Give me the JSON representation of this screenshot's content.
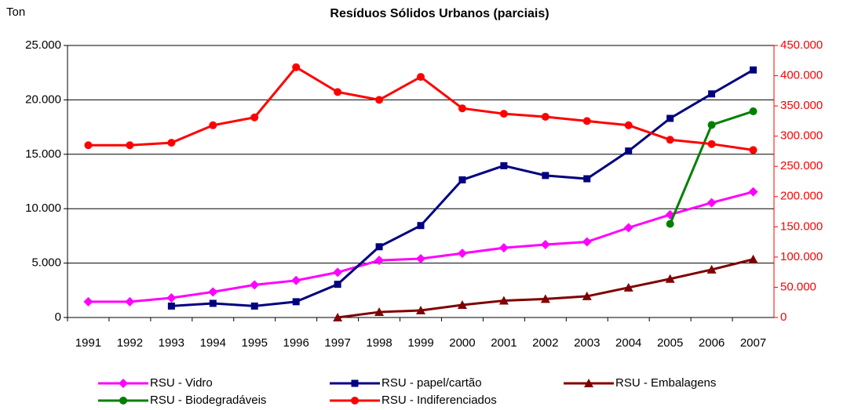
{
  "chart_data": {
    "type": "line",
    "title": "Resíduos Sólidos Urbanos (parciais)",
    "y_axis_label": "Ton",
    "categories": [
      "1991",
      "1992",
      "1993",
      "1994",
      "1995",
      "1996",
      "1997",
      "1998",
      "1999",
      "2000",
      "2001",
      "2002",
      "2003",
      "2004",
      "2005",
      "2006",
      "2007"
    ],
    "series": [
      {
        "name": "RSU - Vidro",
        "color": "#ff00ff",
        "marker": "diamond",
        "values": [
          1450,
          1450,
          1800,
          2350,
          3000,
          3400,
          4150,
          5250,
          5400,
          5900,
          6400,
          6700,
          6950,
          8250,
          9450,
          10550,
          11550
        ]
      },
      {
        "name": "RSU - papel/cartão",
        "color": "#000080",
        "marker": "square",
        "values": [
          null,
          null,
          1050,
          1300,
          1050,
          1450,
          3050,
          6500,
          8450,
          12650,
          13950,
          13050,
          12750,
          15300,
          18300,
          20550,
          22750
        ]
      },
      {
        "name": "RSU - Embalagens",
        "color": "#800000",
        "marker": "triangle",
        "values": [
          null,
          null,
          null,
          null,
          null,
          null,
          0,
          500,
          650,
          1150,
          1550,
          1700,
          1950,
          2750,
          3550,
          4400,
          5350
        ]
      },
      {
        "name": "RSU - Biodegradáveis",
        "color": "#008000",
        "marker": "circle",
        "values": [
          null,
          null,
          null,
          null,
          null,
          null,
          null,
          null,
          null,
          null,
          null,
          null,
          null,
          null,
          8600,
          17700,
          18950
        ]
      },
      {
        "name": "RSU - Indiferenciados",
        "color": "#ff0000",
        "marker": "circle",
        "axis": "y2",
        "values": [
          285000,
          285000,
          289000,
          318000,
          331000,
          414000,
          373000,
          360000,
          398000,
          346000,
          337000,
          332000,
          325000,
          318000,
          294000,
          287000,
          277000
        ]
      }
    ],
    "ylim": [
      0,
      25000
    ],
    "yticks": [
      0,
      {
        "value": 5000,
        "label": "5.000"
      },
      {
        "value": 10000,
        "label": "10.000"
      },
      {
        "value": 15000,
        "label": "15.000"
      },
      {
        "value": 20000,
        "label": "20.000"
      },
      {
        "value": 25000,
        "label": "25.000"
      }
    ],
    "y2lim": [
      0,
      450000
    ],
    "y2ticks": [
      0,
      {
        "value": 50000,
        "label": "50.000"
      },
      {
        "value": 100000,
        "label": "100.000"
      },
      {
        "value": 150000,
        "label": "150.000"
      },
      {
        "value": 200000,
        "label": "200.000"
      },
      {
        "value": 250000,
        "label": "250.000"
      },
      {
        "value": 300000,
        "label": "300.000"
      },
      {
        "value": 350000,
        "label": "350.000"
      },
      {
        "value": 400000,
        "label": "400.000"
      },
      {
        "value": 450000,
        "label": "450.000"
      }
    ],
    "y2_color": "#ff0000",
    "grid": true,
    "legend": "bottom"
  }
}
